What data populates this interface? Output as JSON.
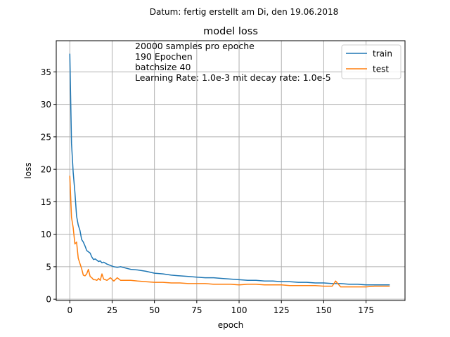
{
  "figure": {
    "suptitle": "Datum: fertig erstellt am Di, den 19.06.2018"
  },
  "chart_data": {
    "type": "line",
    "title": "model loss",
    "xlabel": "epoch",
    "ylabel": "loss",
    "xlim": [
      -8,
      198
    ],
    "ylim": [
      -0.2,
      39.8
    ],
    "xticks": [
      0,
      25,
      50,
      75,
      100,
      125,
      150,
      175
    ],
    "yticks": [
      0,
      5,
      10,
      15,
      20,
      25,
      30,
      35
    ],
    "grid": true,
    "legend_position": "top-right",
    "annotation_lines": [
      "20000 samples pro epoche",
      "190 Epochen",
      "batchsize 40",
      "Learning Rate: 1.0e-3 mit decay rate: 1.0e-5"
    ],
    "series": [
      {
        "name": "train",
        "color": "#1f77b4",
        "x": [
          0,
          1,
          2,
          3,
          4,
          5,
          6,
          7,
          8,
          9,
          10,
          11,
          12,
          13,
          14,
          15,
          16,
          17,
          18,
          19,
          20,
          22,
          24,
          26,
          28,
          30,
          33,
          36,
          40,
          45,
          50,
          55,
          60,
          65,
          70,
          75,
          80,
          85,
          90,
          95,
          100,
          105,
          110,
          115,
          120,
          125,
          130,
          135,
          140,
          145,
          150,
          155,
          160,
          165,
          170,
          175,
          180,
          185,
          189
        ],
        "values": [
          37.8,
          24,
          19.5,
          16.5,
          12.8,
          11.4,
          10.6,
          9.2,
          8.8,
          8.2,
          7.5,
          7.3,
          7.1,
          6.5,
          6.1,
          6.2,
          6.0,
          5.8,
          5.9,
          5.6,
          5.7,
          5.4,
          5.2,
          5.0,
          4.9,
          5.0,
          4.8,
          4.6,
          4.5,
          4.3,
          4.0,
          3.9,
          3.7,
          3.6,
          3.5,
          3.4,
          3.3,
          3.3,
          3.2,
          3.1,
          3.0,
          2.9,
          2.9,
          2.8,
          2.8,
          2.7,
          2.7,
          2.6,
          2.6,
          2.5,
          2.5,
          2.4,
          2.4,
          2.3,
          2.3,
          2.2,
          2.2,
          2.2,
          2.2
        ]
      },
      {
        "name": "test",
        "color": "#ff7f0e",
        "x": [
          0,
          1,
          2,
          3,
          4,
          5,
          6,
          7,
          8,
          9,
          10,
          11,
          12,
          13,
          14,
          15,
          16,
          17,
          18,
          19,
          20,
          22,
          24,
          26,
          28,
          30,
          33,
          36,
          40,
          45,
          50,
          55,
          60,
          65,
          70,
          75,
          80,
          85,
          90,
          95,
          100,
          105,
          110,
          115,
          120,
          125,
          130,
          135,
          140,
          145,
          150,
          155,
          157,
          160,
          165,
          170,
          175,
          180,
          185,
          189
        ],
        "values": [
          19,
          12.6,
          11.0,
          8.5,
          8.8,
          6.3,
          5.5,
          4.7,
          3.7,
          3.6,
          3.9,
          4.6,
          3.5,
          3.3,
          3.0,
          3.0,
          2.9,
          3.2,
          2.9,
          3.9,
          3.1,
          2.9,
          3.3,
          2.8,
          3.3,
          2.9,
          2.9,
          2.9,
          2.8,
          2.7,
          2.6,
          2.6,
          2.5,
          2.5,
          2.4,
          2.4,
          2.4,
          2.3,
          2.3,
          2.3,
          2.2,
          2.3,
          2.3,
          2.2,
          2.2,
          2.2,
          2.1,
          2.1,
          2.1,
          2.1,
          2.0,
          2.0,
          2.8,
          1.9,
          1.9,
          1.9,
          1.9,
          2.0,
          2.0,
          2.0
        ]
      }
    ]
  }
}
